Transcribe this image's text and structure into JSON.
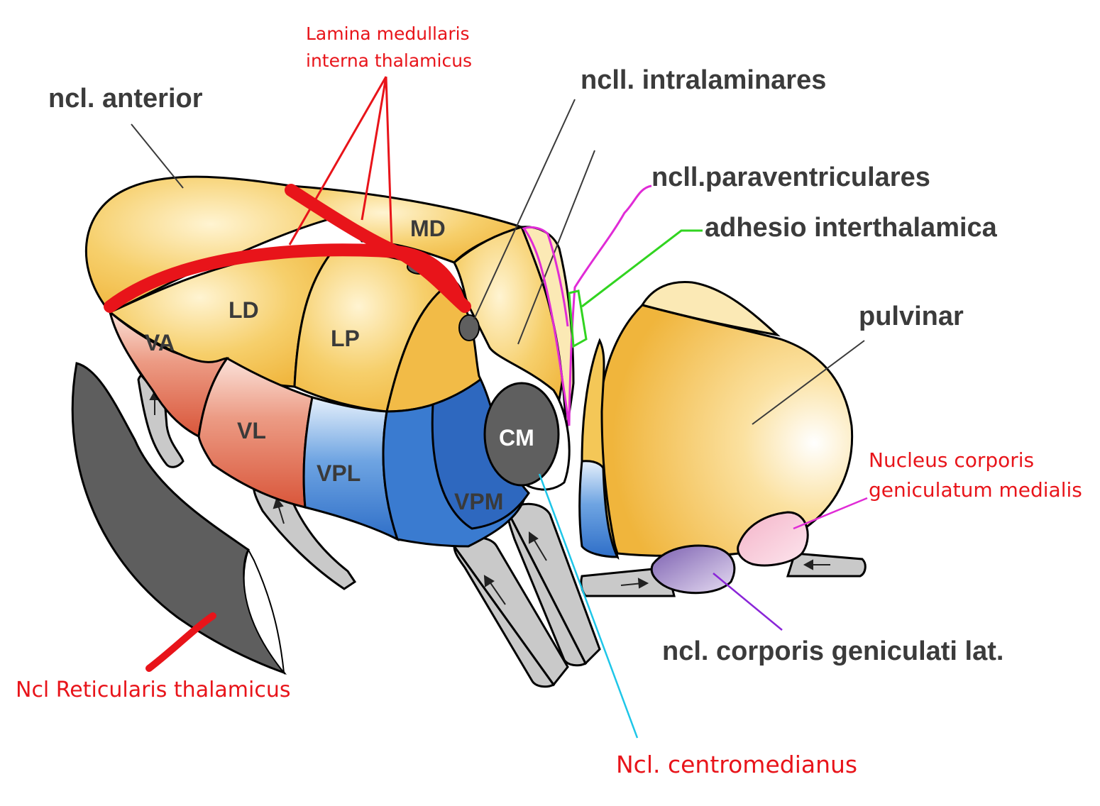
{
  "labels": {
    "ncl_anterior": "ncl. anterior",
    "ncll_intralaminares": "ncll. intralaminares",
    "ncll_paraventriculares": "ncll.paraventriculares",
    "adhesio_interthalamica": "adhesio interthalamica",
    "pulvinar": "pulvinar",
    "ncl_corporis_geniculati_lat": "ncl. corporis geniculati lat."
  },
  "annotations": {
    "lamina_line1": "Lamina medullaris",
    "lamina_line2": "interna thalamicus",
    "nucleus_geniculatum_line1": "Nucleus corporis",
    "nucleus_geniculatum_line2": "geniculatum medialis",
    "ncl_reticularis": "Ncl Reticularis thalamicus",
    "ncl_centromedianus": "Ncl. centromedianus"
  },
  "nuclei": {
    "MD": "MD",
    "LD": "LD",
    "LP": "LP",
    "VA": "VA",
    "VL": "VL",
    "VPL": "VPL",
    "VPM": "VPM",
    "CM": "CM"
  },
  "colors": {
    "yellow": "#f3c24e",
    "yellow_light": "#fbe6a8",
    "red_region": "#de6a4b",
    "blue": "#3b7fd1",
    "blue_dark": "#2c63b8",
    "gray_dark": "#5e5e5e",
    "annotation_red": "#e8141a",
    "paraventricular_magenta": "#e02bd6",
    "adhesio_green": "#31d420",
    "centromedianus_cyan": "#1ec6e8",
    "geniculate_purple": "#8a25d8"
  }
}
